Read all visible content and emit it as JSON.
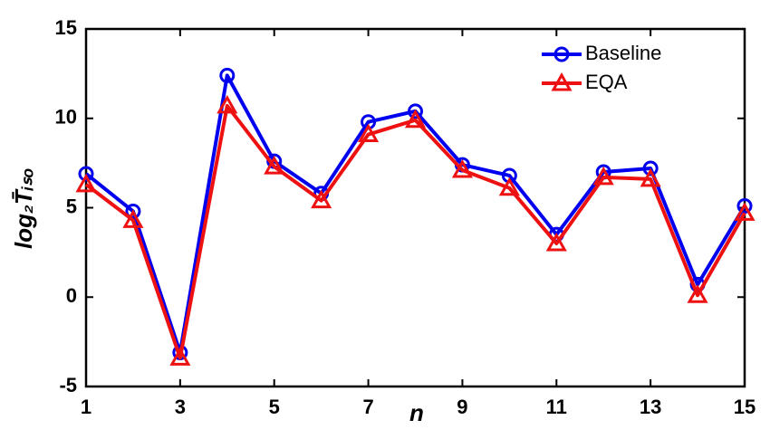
{
  "chart_data": {
    "type": "line",
    "xlabel": "n",
    "ylabel": "log₂T̄ᵢₛₒ",
    "x": [
      1,
      2,
      3,
      4,
      5,
      6,
      7,
      8,
      9,
      10,
      11,
      12,
      13,
      14,
      15
    ],
    "series": [
      {
        "name": "Baseline",
        "color": "#0000ee",
        "marker": "circle",
        "values": [
          6.9,
          4.8,
          -3.1,
          12.4,
          7.6,
          5.8,
          9.8,
          10.4,
          7.4,
          6.8,
          3.5,
          7.0,
          7.2,
          0.7,
          5.1
        ]
      },
      {
        "name": "EQA",
        "color": "#ee1111",
        "marker": "triangle",
        "values": [
          6.3,
          4.3,
          -3.4,
          10.7,
          7.3,
          5.4,
          9.1,
          9.9,
          7.1,
          6.1,
          3.0,
          6.7,
          6.6,
          0.1,
          4.7
        ]
      }
    ],
    "xlim": [
      1,
      15
    ],
    "xticks": [
      1,
      3,
      5,
      7,
      9,
      11,
      13,
      15
    ],
    "ylim": [
      -5,
      15
    ],
    "yticks": [
      -5,
      0,
      5,
      10,
      15
    ],
    "legend": "upper right"
  }
}
